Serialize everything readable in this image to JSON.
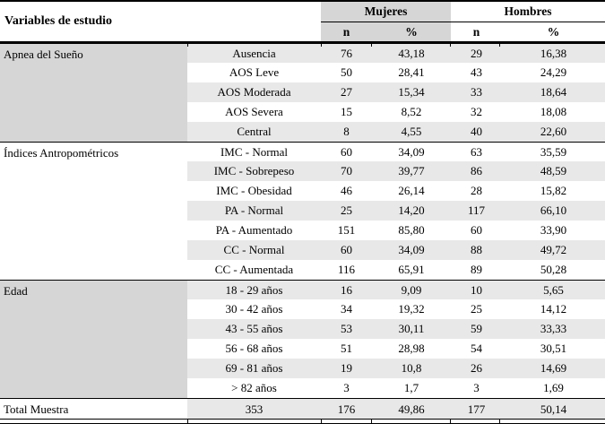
{
  "table": {
    "header": {
      "col_variables": "Variables de estudio",
      "group_mujeres": "Mujeres",
      "group_hombres": "Hombres",
      "sub_n": "n",
      "sub_pct": "%"
    },
    "sections": [
      {
        "group": "Apnea del Sueño",
        "rows": [
          {
            "label": "Ausencia",
            "m_n": "76",
            "m_pct": "43,18",
            "h_n": "29",
            "h_pct": "16,38"
          },
          {
            "label": "AOS Leve",
            "m_n": "50",
            "m_pct": "28,41",
            "h_n": "43",
            "h_pct": "24,29"
          },
          {
            "label": "AOS Moderada",
            "m_n": "27",
            "m_pct": "15,34",
            "h_n": "33",
            "h_pct": "18,64"
          },
          {
            "label": "AOS Severa",
            "m_n": "15",
            "m_pct": "8,52",
            "h_n": "32",
            "h_pct": "18,08"
          },
          {
            "label": "Central",
            "m_n": "8",
            "m_pct": "4,55",
            "h_n": "40",
            "h_pct": "22,60"
          }
        ]
      },
      {
        "group": "Índices Antropométricos",
        "rows": [
          {
            "label": "IMC - Normal",
            "m_n": "60",
            "m_pct": "34,09",
            "h_n": "63",
            "h_pct": "35,59"
          },
          {
            "label": "IMC - Sobrepeso",
            "m_n": "70",
            "m_pct": "39,77",
            "h_n": "86",
            "h_pct": "48,59"
          },
          {
            "label": "IMC - Obesidad",
            "m_n": "46",
            "m_pct": "26,14",
            "h_n": "28",
            "h_pct": "15,82"
          },
          {
            "label": "PA - Normal",
            "m_n": "25",
            "m_pct": "14,20",
            "h_n": "117",
            "h_pct": "66,10"
          },
          {
            "label": "PA - Aumentado",
            "m_n": "151",
            "m_pct": "85,80",
            "h_n": "60",
            "h_pct": "33,90"
          },
          {
            "label": "CC - Normal",
            "m_n": "60",
            "m_pct": "34,09",
            "h_n": "88",
            "h_pct": "49,72"
          },
          {
            "label": "CC - Aumentada",
            "m_n": "116",
            "m_pct": "65,91",
            "h_n": "89",
            "h_pct": "50,28"
          }
        ]
      },
      {
        "group": "Edad",
        "rows": [
          {
            "label": "18 - 29 años",
            "m_n": "16",
            "m_pct": "9,09",
            "h_n": "10",
            "h_pct": "5,65"
          },
          {
            "label": "30 - 42 años",
            "m_n": "34",
            "m_pct": "19,32",
            "h_n": "25",
            "h_pct": "14,12"
          },
          {
            "label": "43 - 55 años",
            "m_n": "53",
            "m_pct": "30,11",
            "h_n": "59",
            "h_pct": "33,33"
          },
          {
            "label": "56 - 68 años",
            "m_n": "51",
            "m_pct": "28,98",
            "h_n": "54",
            "h_pct": "30,51"
          },
          {
            "label": "69 - 81 años",
            "m_n": "19",
            "m_pct": "10,8",
            "h_n": "26",
            "h_pct": "14,69"
          },
          {
            "label": "> 82 años",
            "m_n": "3",
            "m_pct": "1,7",
            "h_n": "3",
            "h_pct": "1,69"
          }
        ]
      }
    ],
    "total": {
      "label": "Total Muestra",
      "total_n": "353",
      "m_n": "176",
      "m_pct": "49,86",
      "h_n": "177",
      "h_pct": "50,14"
    }
  },
  "colors": {
    "group_shade": "#D6D6D6",
    "stripe_shade": "#E8E8E8",
    "border": "#000000",
    "text": "#000000",
    "background": "#FFFFFF"
  }
}
